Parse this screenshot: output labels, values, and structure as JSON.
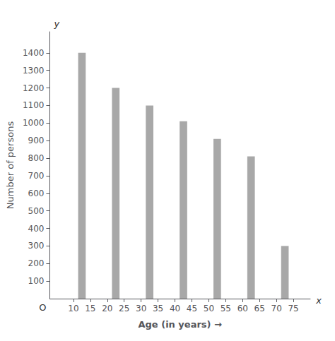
{
  "chart_data": {
    "type": "bar",
    "x": [
      12.5,
      22.5,
      32.5,
      42.5,
      52.5,
      62.5,
      72.5
    ],
    "values": [
      1400,
      1200,
      1100,
      1010,
      910,
      810,
      300
    ],
    "color": "#a8a8a8",
    "xlabel": "Age (in years) →",
    "ylabel": "Number of persons",
    "xlim": [
      3,
      80
    ],
    "xticks": [
      10,
      15,
      20,
      25,
      30,
      35,
      40,
      45,
      50,
      55,
      60,
      65,
      70,
      75
    ],
    "ylim": [
      0,
      1520
    ],
    "yticks": [
      100,
      200,
      300,
      400,
      500,
      600,
      700,
      800,
      900,
      1000,
      1100,
      1200,
      1300,
      1400
    ],
    "annotations": [
      "x",
      "y",
      "O"
    ],
    "grid": false
  }
}
